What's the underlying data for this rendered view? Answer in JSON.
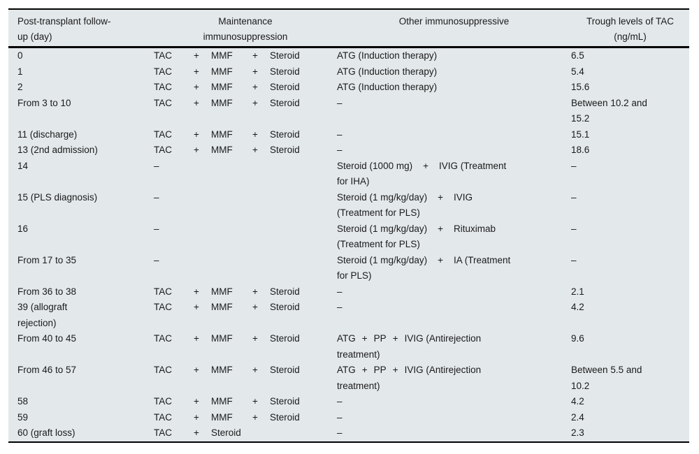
{
  "table": {
    "bg_color": "#e3e8ea",
    "rule_color": "#000000",
    "text_color": "#1a1a1a",
    "header": {
      "col_day": "Post-transplant follow-\nup (day)",
      "col_maintenance": "Maintenance\nimmunosuppression",
      "col_other": "Other immunosuppressive",
      "col_trough": "Trough levels of TAC\n(ng/mL)"
    },
    "rows": [
      {
        "day": [
          "0"
        ],
        "m": [
          "TAC",
          "+",
          "MMF",
          "+",
          "Steroid"
        ],
        "other": [
          "ATG (Induction therapy)"
        ],
        "trough": [
          "6.5"
        ]
      },
      {
        "day": [
          "1"
        ],
        "m": [
          "TAC",
          "+",
          "MMF",
          "+",
          "Steroid"
        ],
        "other": [
          "ATG (Induction therapy)"
        ],
        "trough": [
          "5.4"
        ]
      },
      {
        "day": [
          "2"
        ],
        "m": [
          "TAC",
          "+",
          "MMF",
          "+",
          "Steroid"
        ],
        "other": [
          "ATG (Induction therapy)"
        ],
        "trough": [
          "15.6"
        ]
      },
      {
        "day": [
          "From 3 to 10"
        ],
        "m": [
          "TAC",
          "+",
          "MMF",
          "+",
          "Steroid"
        ],
        "other": [
          "–"
        ],
        "trough": [
          "Between 10.2 and",
          "15.2"
        ]
      },
      {
        "day": [
          "11 (discharge)"
        ],
        "m": [
          "TAC",
          "+",
          "MMF",
          "+",
          "Steroid"
        ],
        "other": [
          "–"
        ],
        "trough": [
          "15.1"
        ]
      },
      {
        "day": [
          "13 (2nd admission)"
        ],
        "m": [
          "TAC",
          "+",
          "MMF",
          "+",
          "Steroid"
        ],
        "other": [
          "–"
        ],
        "trough": [
          "18.6"
        ]
      },
      {
        "day": [
          "14"
        ],
        "m": [
          "–",
          "",
          "",
          "",
          ""
        ],
        "other": [
          "Steroid (1000 mg) + IVIG (Treatment",
          "for IHA)"
        ],
        "trough": [
          "–"
        ]
      },
      {
        "day": [
          "15 (PLS diagnosis)"
        ],
        "m": [
          "–",
          "",
          "",
          "",
          ""
        ],
        "other": [
          "Steroid (1 mg/kg/day) + IVIG",
          "(Treatment for PLS)"
        ],
        "trough": [
          "–"
        ]
      },
      {
        "day": [
          "16"
        ],
        "m": [
          "–",
          "",
          "",
          "",
          ""
        ],
        "other": [
          "Steroid (1 mg/kg/day) + Rituximab",
          "(Treatment for PLS)"
        ],
        "trough": [
          "–"
        ]
      },
      {
        "day": [
          "From 17 to 35"
        ],
        "m": [
          "–",
          "",
          "",
          "",
          ""
        ],
        "other": [
          "Steroid (1 mg/kg/day) + IA (Treatment",
          "for PLS)"
        ],
        "trough": [
          "–"
        ]
      },
      {
        "day": [
          "From 36 to 38"
        ],
        "m": [
          "TAC",
          "+",
          "MMF",
          "+",
          "Steroid"
        ],
        "other": [
          "–"
        ],
        "trough": [
          "2.1"
        ]
      },
      {
        "day": [
          "39 (allograft",
          "rejection)"
        ],
        "m": [
          "TAC",
          "+",
          "MMF",
          "+",
          "Steroid"
        ],
        "other": [
          "–"
        ],
        "trough": [
          "4.2"
        ]
      },
      {
        "day": [
          "From 40 to 45"
        ],
        "m": [
          "TAC",
          "+",
          "MMF",
          "+",
          "Steroid"
        ],
        "other": [
          "ATG + PP + IVIG (Antirejection",
          "treatment)"
        ],
        "trough": [
          "9.6"
        ]
      },
      {
        "day": [
          "From 46 to 57"
        ],
        "m": [
          "TAC",
          "+",
          "MMF",
          "+",
          "Steroid"
        ],
        "other": [
          "ATG + PP + IVIG (Antirejection",
          "treatment)"
        ],
        "trough": [
          "Between 5.5 and",
          "10.2"
        ]
      },
      {
        "day": [
          "58"
        ],
        "m": [
          "TAC",
          "+",
          "MMF",
          "+",
          "Steroid"
        ],
        "other": [
          "–"
        ],
        "trough": [
          "4.2"
        ]
      },
      {
        "day": [
          "59"
        ],
        "m": [
          "TAC",
          "+",
          "MMF",
          "+",
          "Steroid"
        ],
        "other": [
          "–"
        ],
        "trough": [
          "2.4"
        ]
      },
      {
        "day": [
          "60 (graft loss)"
        ],
        "m": [
          "TAC",
          "+",
          "Steroid",
          "",
          ""
        ],
        "other": [
          "–"
        ],
        "trough": [
          "2.3"
        ]
      }
    ]
  }
}
